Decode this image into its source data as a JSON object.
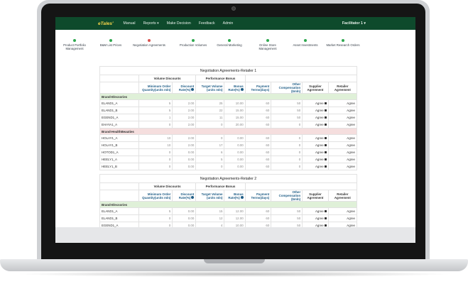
{
  "nav": {
    "brand": "eTales'",
    "items": [
      "Manual",
      "Reports ▾",
      "Make Decision",
      "Feedback",
      "Admin"
    ],
    "user": "Facilitator 1 ▾"
  },
  "steps": [
    {
      "label": "Product Portfolio Management",
      "status": "done",
      "color": "#2fa84f"
    },
    {
      "label": "B&M List Prices",
      "status": "done",
      "color": "#2fa84f"
    },
    {
      "label": "Negotiation Agreements",
      "status": "pending",
      "color": "#d9534f"
    },
    {
      "label": "Production Volumes",
      "status": "done",
      "color": "#2fa84f"
    },
    {
      "label": "General Marketing",
      "status": "done",
      "color": "#2fa84f"
    },
    {
      "label": "Online Store Management",
      "status": "done",
      "color": "#2fa84f"
    },
    {
      "label": "Asset Investments",
      "status": "done",
      "color": "#2fa84f"
    },
    {
      "label": "Market Research Orders",
      "status": "done",
      "color": "#2fa84f"
    }
  ],
  "headers": {
    "group_volume": "Volume Discounts",
    "group_performance": "Performance Bonus",
    "min_order": "Minimum Order Quantity(units mln)",
    "discount_rate": "Discount Rate(%)",
    "target_volume": "Target Volume (units mln)",
    "bonus_rate": "Bonus Rate(%)",
    "payment_terms": "Payment Terms(days)",
    "other_comp": "Other Compensation ($mln)",
    "supplier_agreement": "Supplier Agreement",
    "retailer_agreement": "Retailer Agreement"
  },
  "tables": [
    {
      "title": "Negotiation Agreements-Retailer 1",
      "groups": [
        {
          "brand": "Brand-Elecsories",
          "tone": "green",
          "rows": [
            [
              "ELAND1_A",
              "5",
              "2.00",
              "25",
              "10.00",
              "60",
              "50",
              "Agree",
              "Agree"
            ],
            [
              "ELAND1_B",
              "5",
              "2.00",
              "22",
              "15.00",
              "60",
              "50",
              "Agree",
              "Agree"
            ],
            [
              "EGEND1_A",
              "1",
              "2.00",
              "11",
              "15.00",
              "60",
              "50",
              "Agree",
              "Agree"
            ],
            [
              "EHAYA1_A",
              "0",
              "2.00",
              "0",
              "20.00",
              "60",
              "0",
              "Agree",
              "Agree"
            ]
          ]
        },
        {
          "brand": "Brand-HealthBeauties",
          "tone": "red",
          "rows": [
            [
              "HOLAY1_A",
              "10",
              "2.00",
              "0",
              "0.00",
              "60",
              "0",
              "Agree",
              "Agree"
            ],
            [
              "HOLAY1_B",
              "10",
              "2.00",
              "17",
              "0.00",
              "60",
              "0",
              "Agree",
              "Agree"
            ],
            [
              "HOTOD1_A",
              "0",
              "0.00",
              "6",
              "0.00",
              "60",
              "0",
              "Agree",
              "Agree"
            ],
            [
              "HEELY1_A",
              "0",
              "0.00",
              "5",
              "0.00",
              "60",
              "0",
              "Agree",
              "Agree"
            ],
            [
              "HEELY1_B",
              "0",
              "0.00",
              "0",
              "0.00",
              "60",
              "0",
              "Agree",
              "Agree"
            ]
          ]
        }
      ]
    },
    {
      "title": "Negotiation Agreements-Retailer 2",
      "groups": [
        {
          "brand": "Brand-Elecsories",
          "tone": "green",
          "rows": [
            [
              "ELAND1_A",
              "5",
              "0.00",
              "15",
              "12.00",
              "60",
              "50",
              "Agree",
              "Agree"
            ],
            [
              "ELAND1_B",
              "0",
              "0.00",
              "12",
              "12.00",
              "60",
              "50",
              "Agree",
              "Agree"
            ],
            [
              "EGEND1_A",
              "0",
              "0.00",
              "4",
              "10.00",
              "60",
              "50",
              "Agree",
              "Agree"
            ]
          ]
        }
      ]
    }
  ]
}
